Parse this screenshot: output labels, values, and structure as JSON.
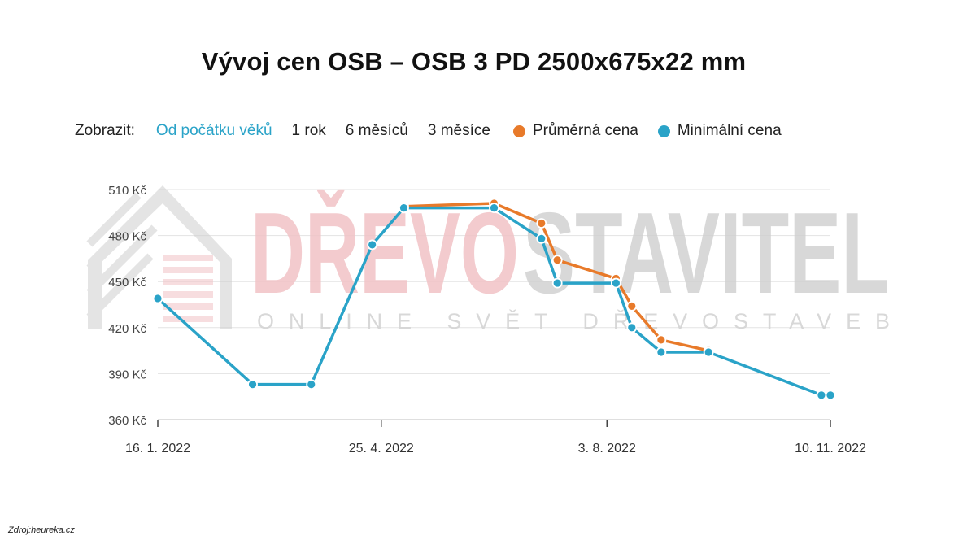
{
  "title": "Vývoj cen OSB – OSB 3 PD 2500x675x22 mm",
  "controls": {
    "label": "Zobrazit:",
    "options": [
      "Od počátku věků",
      "1 rok",
      "6 měsíců",
      "3 měsíce"
    ],
    "active_index": 0
  },
  "watermark": {
    "brand_part1": "DŘEVO",
    "brand_part2": "STAVITEL",
    "tagline": "ONLINE SVĚT DŘEVOSTAVEB"
  },
  "source": "Zdroj:heureka.cz",
  "colors": {
    "average": "#e87a2a",
    "minimum": "#2aa3c8",
    "active_option": "#2aa3c8",
    "grid": "#e3e3e3",
    "watermark_red": "#f1c3c6",
    "watermark_gray": "#cfcfcf"
  },
  "chart_data": {
    "type": "line",
    "x_axis_type": "date",
    "xlim": [
      "2022-01-16",
      "2022-11-10"
    ],
    "ylim": [
      360,
      510
    ],
    "y_ticks": [
      {
        "value": 360,
        "label": "360 Kč"
      },
      {
        "value": 390,
        "label": "390 Kč"
      },
      {
        "value": 420,
        "label": "420 Kč"
      },
      {
        "value": 450,
        "label": "450 Kč"
      },
      {
        "value": 480,
        "label": "480 Kč"
      },
      {
        "value": 510,
        "label": "510 Kč"
      }
    ],
    "x_ticks": [
      {
        "value": "2022-01-16",
        "label": "16. 1. 2022"
      },
      {
        "value": "2022-04-25",
        "label": "25. 4. 2022"
      },
      {
        "value": "2022-08-03",
        "label": "3. 8. 2022"
      },
      {
        "value": "2022-11-10",
        "label": "10. 11. 2022"
      }
    ],
    "grid": true,
    "legend_position": "top",
    "series": [
      {
        "name": "Průměrná cena",
        "color": "#e87a2a",
        "points": [
          {
            "x": "2022-05-05",
            "y": 499
          },
          {
            "x": "2022-06-14",
            "y": 501
          },
          {
            "x": "2022-07-05",
            "y": 488
          },
          {
            "x": "2022-07-12",
            "y": 464
          },
          {
            "x": "2022-08-07",
            "y": 452
          },
          {
            "x": "2022-08-14",
            "y": 434
          },
          {
            "x": "2022-08-27",
            "y": 412
          },
          {
            "x": "2022-09-17",
            "y": 405
          }
        ]
      },
      {
        "name": "Minimální cena",
        "color": "#2aa3c8",
        "points": [
          {
            "x": "2022-01-16",
            "y": 439
          },
          {
            "x": "2022-02-27",
            "y": 383
          },
          {
            "x": "2022-03-25",
            "y": 383
          },
          {
            "x": "2022-04-21",
            "y": 474
          },
          {
            "x": "2022-05-05",
            "y": 498
          },
          {
            "x": "2022-06-14",
            "y": 498
          },
          {
            "x": "2022-07-05",
            "y": 478
          },
          {
            "x": "2022-07-12",
            "y": 449
          },
          {
            "x": "2022-08-07",
            "y": 449
          },
          {
            "x": "2022-08-14",
            "y": 420
          },
          {
            "x": "2022-08-27",
            "y": 404
          },
          {
            "x": "2022-09-17",
            "y": 404
          },
          {
            "x": "2022-11-06",
            "y": 376
          },
          {
            "x": "2022-11-10",
            "y": 376
          }
        ]
      }
    ]
  }
}
